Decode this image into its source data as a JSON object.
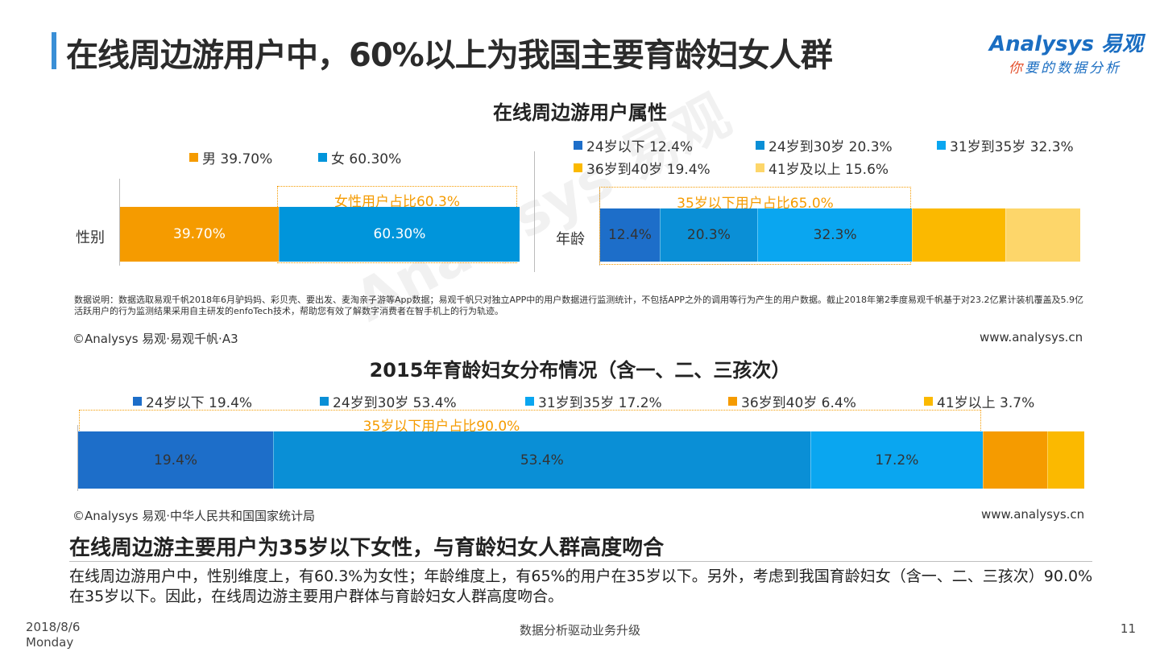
{
  "header": {
    "title": "在线周边游用户中，60%以上为我国主要育龄妇女人群",
    "logo_text": "Analysys 易观",
    "logo_tagline_first": "你",
    "logo_tagline_rest": "要的数据分析"
  },
  "colors": {
    "accent_bar": "#3a8fd6",
    "callout": "#f59b00",
    "male": "#f59b00",
    "female": "#0095db"
  },
  "chart_data": [
    {
      "id": "gender",
      "type": "bar",
      "stacked": true,
      "orientation": "horizontal",
      "title": "在线周边游用户属性",
      "categories": [
        "性别"
      ],
      "series": [
        {
          "name": "男 39.70%",
          "values": [
            39.7
          ],
          "label": "39.70%",
          "color": "#f59b00"
        },
        {
          "name": "女 60.30%",
          "values": [
            60.3
          ],
          "label": "60.30%",
          "color": "#0095db"
        }
      ],
      "annotation": "女性用户占比60.3%",
      "xlim": [
        0,
        100
      ],
      "legend": "top"
    },
    {
      "id": "age_users",
      "type": "bar",
      "stacked": true,
      "orientation": "horizontal",
      "categories": [
        "年龄"
      ],
      "series": [
        {
          "name": "24岁以下 12.4%",
          "values": [
            12.4
          ],
          "label": "12.4%",
          "color": "#1d6ec9"
        },
        {
          "name": "24岁到30岁 20.3%",
          "values": [
            20.3
          ],
          "label": "20.3%",
          "color": "#0a8fd6"
        },
        {
          "name": "31岁到35岁 32.3%",
          "values": [
            32.3
          ],
          "label": "32.3%",
          "color": "#0aa6f0"
        },
        {
          "name": "36岁到40岁 19.4%",
          "values": [
            19.4
          ],
          "label": "",
          "color": "#fbb900"
        },
        {
          "name": "41岁及以上 15.6%",
          "values": [
            15.6
          ],
          "label": "",
          "color": "#fdd66a"
        }
      ],
      "annotation": "35岁以下用户占比65.0%",
      "xlim": [
        0,
        100
      ],
      "legend": "top"
    },
    {
      "id": "age_women_2015",
      "type": "bar",
      "stacked": true,
      "orientation": "horizontal",
      "title": "2015年育龄妇女分布情况（含一、二、三孩次）",
      "categories": [
        ""
      ],
      "series": [
        {
          "name": "24岁以下 19.4%",
          "values": [
            19.4
          ],
          "label": "19.4%",
          "color": "#1d6ec9"
        },
        {
          "name": "24岁到30岁 53.4%",
          "values": [
            53.4
          ],
          "label": "53.4%",
          "color": "#0a8fd6"
        },
        {
          "name": "31岁到35岁 17.2%",
          "values": [
            17.2
          ],
          "label": "17.2%",
          "color": "#0aa6f0"
        },
        {
          "name": "36岁到40岁 6.4%",
          "values": [
            6.4
          ],
          "label": "",
          "color": "#f59b00"
        },
        {
          "name": "41岁以上 3.7%",
          "values": [
            3.7
          ],
          "label": "",
          "color": "#fbb900"
        }
      ],
      "annotation": "35岁以下用户占比90.0%",
      "xlim": [
        0,
        100
      ],
      "legend": "top"
    }
  ],
  "notes": {
    "data_note": "数据说明：数据选取易观千帆2018年6月驴妈妈、彩贝壳、要出发、麦淘亲子游等App数据；易观千帆只对独立APP中的用户数据进行监测统计，不包括APP之外的调用等行为产生的用户数据。截止2018年第2季度易观千帆基于对23.2亿累计装机覆盖及5.9亿活跃用户的行为监测结果采用自主研发的enfoTech技术，帮助您有效了解数字消费者在智手机上的行为轨迹。",
    "source_top": "©Analysys 易观·易观千帆·A3",
    "url_top": "www.analysys.cn",
    "source_bottom": "©Analysys 易观·中华人民共和国国家统计局",
    "url_bottom": "www.analysys.cn"
  },
  "summary": {
    "title": "在线周边游主要用户为35岁以下女性，与育龄妇女人群高度吻合",
    "body": "在线周边游用户中，性别维度上，有60.3%为女性；年龄维度上，有65%的用户在35岁以下。另外，考虑到我国育龄妇女（含一、二、三孩次）90.0%在35岁以下。因此，在线周边游主要用户群体与育龄妇女人群高度吻合。"
  },
  "footer": {
    "date": "2018/8/6",
    "weekday": "Monday",
    "center": "数据分析驱动业务升级",
    "page": "11"
  },
  "watermark": "Analysys 易观"
}
